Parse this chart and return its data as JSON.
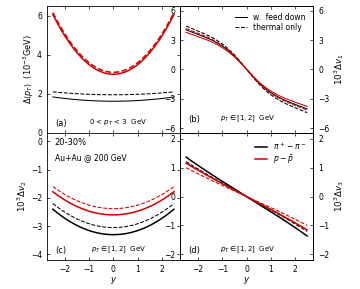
{
  "figsize": [
    3.6,
    2.89
  ],
  "dpi": 100,
  "background": "#ffffff",
  "panel_a": {
    "label": "(a)",
    "text": "0 < $p_T$ < 3  GeV",
    "ylabel": "$\\Delta\\langle p_T \\rangle$  $(10^{-3}\\mathrm{GeV})$",
    "ylim": [
      0.0,
      6.5
    ],
    "yticks": [
      0.0,
      2.0,
      4.0,
      6.0
    ]
  },
  "panel_b": {
    "label": "(b)",
    "text": "$p_T \\in [1,2]$  GeV",
    "ylabel": "$10^3\\Delta v_1$",
    "ylim": [
      -6.5,
      6.5
    ],
    "yticks": [
      -6.0,
      -3.0,
      0.0,
      3.0,
      6.0
    ],
    "legend_solid": "w.  feed down",
    "legend_dashed": "thermal only"
  },
  "panel_c": {
    "label": "(c)",
    "text": "$p_T \\in [1,2]$  GeV",
    "ylabel": "$10^3\\Delta v_2$",
    "ylim": [
      -4.2,
      0.3
    ],
    "yticks": [
      -4.0,
      -3.0,
      -2.0,
      -1.0,
      0.0
    ],
    "info1": "20-30%",
    "info2": "Au+Au @ 200 GeV"
  },
  "panel_d": {
    "label": "(d)",
    "text": "$p_T \\in [1,2]$  GeV",
    "ylabel": "$10^3\\Delta v_3$",
    "ylim": [
      -2.2,
      2.2
    ],
    "yticks": [
      -2.0,
      -1.0,
      0.0,
      1.0,
      2.0
    ],
    "legend_black": "$\\pi^+ - \\pi^-$",
    "legend_red": "$p - \\bar{p}$"
  },
  "colors": {
    "red": "#cc0000",
    "black": "#000000"
  },
  "xlim": [
    -2.75,
    2.75
  ],
  "xticks": [
    -2.0,
    -1.0,
    0.0,
    1.0,
    2.0
  ]
}
